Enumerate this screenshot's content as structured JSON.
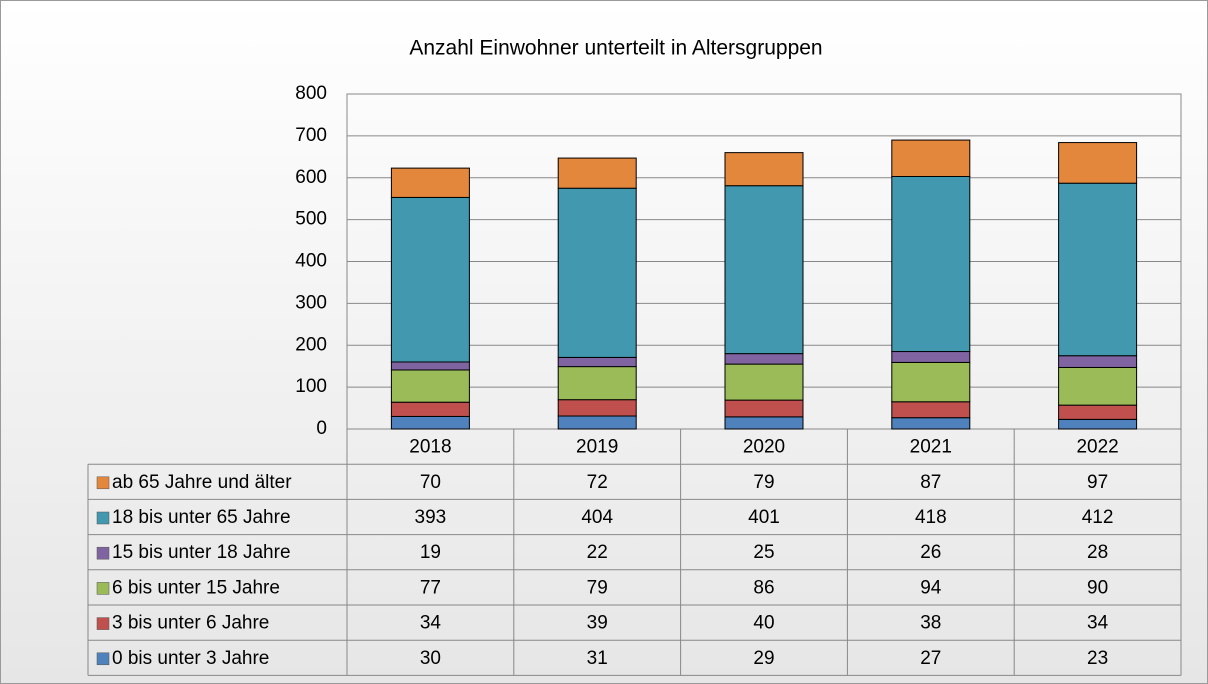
{
  "chart_data": {
    "type": "bar",
    "stacked": true,
    "title": "Anzahl Einwohner unterteilt in Altersgruppen",
    "categories": [
      "2018",
      "2019",
      "2020",
      "2021",
      "2022"
    ],
    "series": [
      {
        "name": "0 bis unter 3 Jahre",
        "color": "#4f81bd",
        "values": [
          30,
          31,
          29,
          27,
          23
        ]
      },
      {
        "name": "3 bis unter 6 Jahre",
        "color": "#c0504d",
        "values": [
          34,
          39,
          40,
          38,
          34
        ]
      },
      {
        "name": "6 bis unter 15 Jahre",
        "color": "#9bbb59",
        "values": [
          77,
          79,
          86,
          94,
          90
        ]
      },
      {
        "name": "15 bis unter 18 Jahre",
        "color": "#8064a2",
        "values": [
          19,
          22,
          25,
          26,
          28
        ]
      },
      {
        "name": "18 bis unter 65 Jahre",
        "color": "#4198af",
        "values": [
          393,
          404,
          401,
          418,
          412
        ]
      },
      {
        "name": "ab 65 Jahre und älter",
        "color": "#e3873c",
        "values": [
          70,
          72,
          79,
          87,
          97
        ]
      }
    ],
    "ylim": [
      0,
      800
    ],
    "yticks": [
      0,
      100,
      200,
      300,
      400,
      500,
      600,
      700,
      800
    ],
    "grid": true
  }
}
